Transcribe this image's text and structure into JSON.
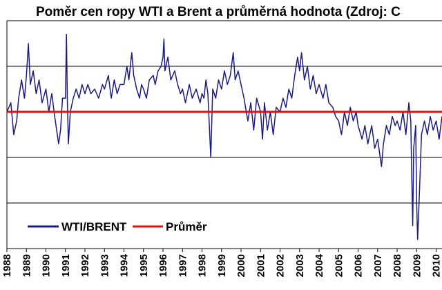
{
  "chart_data": {
    "type": "line",
    "title": "Poměr cen ropy WTI a Brent a průměrná hodnota (Zdroj: C",
    "xlabel": "",
    "ylabel": "",
    "x_ticks": [
      "1988",
      "1989",
      "1990",
      "1991",
      "1992",
      "1993",
      "1994",
      "1995",
      "1996",
      "1997",
      "1998",
      "1999",
      "2000",
      "2001",
      "2002",
      "2003",
      "2004",
      "2005",
      "2006",
      "2007",
      "2008",
      "2009",
      "2010"
    ],
    "xlim": [
      1988.0,
      2010.3
    ],
    "ylim": [
      0.7,
      1.2
    ],
    "y_gridlines": [
      0.8,
      0.9,
      1.0,
      1.1,
      1.2
    ],
    "grid": "horizontal",
    "legend_position": "bottom-left",
    "series": [
      {
        "name": "WTI/BRENT",
        "color": "#1a1a80",
        "points": [
          [
            1988.0,
            1.0
          ],
          [
            1988.2,
            1.02
          ],
          [
            1988.35,
            0.95
          ],
          [
            1988.5,
            0.98
          ],
          [
            1988.6,
            1.03
          ],
          [
            1988.75,
            1.07
          ],
          [
            1988.9,
            1.03
          ],
          [
            1989.0,
            1.08
          ],
          [
            1989.1,
            1.15
          ],
          [
            1989.2,
            1.06
          ],
          [
            1989.35,
            1.09
          ],
          [
            1989.5,
            1.04
          ],
          [
            1989.65,
            1.07
          ],
          [
            1989.8,
            1.02
          ],
          [
            1990.0,
            1.05
          ],
          [
            1990.15,
            1.0
          ],
          [
            1990.3,
            1.04
          ],
          [
            1990.45,
            0.99
          ],
          [
            1990.55,
            0.96
          ],
          [
            1990.65,
            0.93
          ],
          [
            1990.75,
            0.96
          ],
          [
            1990.85,
            1.03
          ],
          [
            1991.0,
            1.03
          ],
          [
            1991.05,
            1.17
          ],
          [
            1991.1,
            1.02
          ],
          [
            1991.15,
            0.93
          ],
          [
            1991.25,
            1.0
          ],
          [
            1991.4,
            1.03
          ],
          [
            1991.55,
            1.05
          ],
          [
            1991.7,
            1.03
          ],
          [
            1991.85,
            1.06
          ],
          [
            1992.0,
            1.04
          ],
          [
            1992.15,
            1.06
          ],
          [
            1992.3,
            1.04
          ],
          [
            1992.5,
            1.05
          ],
          [
            1992.7,
            1.03
          ],
          [
            1992.9,
            1.06
          ],
          [
            1993.0,
            1.05
          ],
          [
            1993.2,
            1.08
          ],
          [
            1993.35,
            1.03
          ],
          [
            1993.5,
            1.07
          ],
          [
            1993.65,
            1.04
          ],
          [
            1993.8,
            1.06
          ],
          [
            1994.0,
            1.06
          ],
          [
            1994.15,
            1.1
          ],
          [
            1994.25,
            1.07
          ],
          [
            1994.4,
            1.13
          ],
          [
            1994.5,
            1.08
          ],
          [
            1994.65,
            1.05
          ],
          [
            1994.8,
            1.03
          ],
          [
            1994.9,
            1.06
          ],
          [
            1995.0,
            1.05
          ],
          [
            1995.15,
            1.03
          ],
          [
            1995.3,
            1.07
          ],
          [
            1995.5,
            1.08
          ],
          [
            1995.6,
            1.06
          ],
          [
            1995.75,
            1.09
          ],
          [
            1995.9,
            1.1
          ],
          [
            1996.0,
            1.12
          ],
          [
            1996.05,
            1.16
          ],
          [
            1996.1,
            1.09
          ],
          [
            1996.25,
            1.12
          ],
          [
            1996.4,
            1.07
          ],
          [
            1996.6,
            1.09
          ],
          [
            1996.75,
            1.06
          ],
          [
            1996.9,
            1.04
          ],
          [
            1997.0,
            1.05
          ],
          [
            1997.15,
            1.02
          ],
          [
            1997.35,
            1.06
          ],
          [
            1997.5,
            1.03
          ],
          [
            1997.7,
            1.05
          ],
          [
            1997.9,
            1.02
          ],
          [
            1998.0,
            1.04
          ],
          [
            1998.1,
            1.03
          ],
          [
            1998.2,
            1.07
          ],
          [
            1998.3,
            1.04
          ],
          [
            1998.45,
            0.9
          ],
          [
            1998.55,
            1.05
          ],
          [
            1998.7,
            1.03
          ],
          [
            1998.85,
            1.07
          ],
          [
            1999.0,
            1.05
          ],
          [
            1999.15,
            1.09
          ],
          [
            1999.3,
            1.06
          ],
          [
            1999.45,
            1.08
          ],
          [
            1999.6,
            1.13
          ],
          [
            1999.7,
            1.07
          ],
          [
            1999.85,
            1.09
          ],
          [
            2000.0,
            1.06
          ],
          [
            2000.15,
            1.03
          ],
          [
            2000.35,
            0.98
          ],
          [
            2000.5,
            1.02
          ],
          [
            2000.65,
            0.96
          ],
          [
            2000.8,
            1.03
          ],
          [
            2001.0,
            1.0
          ],
          [
            2001.1,
            0.94
          ],
          [
            2001.2,
            1.02
          ],
          [
            2001.35,
            0.96
          ],
          [
            2001.5,
            1.0
          ],
          [
            2001.65,
            0.95
          ],
          [
            2001.8,
            1.01
          ],
          [
            2002.0,
            1.0
          ],
          [
            2002.15,
            1.03
          ],
          [
            2002.3,
            1.01
          ],
          [
            2002.45,
            1.05
          ],
          [
            2002.6,
            1.03
          ],
          [
            2002.75,
            1.08
          ],
          [
            2002.9,
            1.12
          ],
          [
            2003.0,
            1.09
          ],
          [
            2003.1,
            1.13
          ],
          [
            2003.25,
            1.07
          ],
          [
            2003.4,
            1.1
          ],
          [
            2003.55,
            1.05
          ],
          [
            2003.7,
            1.08
          ],
          [
            2003.85,
            1.04
          ],
          [
            2004.0,
            1.06
          ],
          [
            2004.2,
            1.03
          ],
          [
            2004.35,
            1.06
          ],
          [
            2004.5,
            1.02
          ],
          [
            2004.7,
            1.01
          ],
          [
            2004.85,
            0.99
          ],
          [
            2005.0,
            0.98
          ],
          [
            2005.15,
            0.95
          ],
          [
            2005.3,
            1.0
          ],
          [
            2005.45,
            0.97
          ],
          [
            2005.6,
            1.01
          ],
          [
            2005.75,
            0.98
          ],
          [
            2005.9,
            1.0
          ],
          [
            2006.0,
            0.97
          ],
          [
            2006.2,
            0.94
          ],
          [
            2006.35,
            0.97
          ],
          [
            2006.5,
            0.93
          ],
          [
            2006.7,
            0.97
          ],
          [
            2006.85,
            0.92
          ],
          [
            2007.0,
            0.94
          ],
          [
            2007.1,
            0.91
          ],
          [
            2007.2,
            0.88
          ],
          [
            2007.3,
            0.93
          ],
          [
            2007.45,
            0.97
          ],
          [
            2007.6,
            0.95
          ],
          [
            2007.75,
            0.99
          ],
          [
            2007.9,
            0.97
          ],
          [
            2008.0,
            0.98
          ],
          [
            2008.15,
            0.96
          ],
          [
            2008.3,
            1.0
          ],
          [
            2008.45,
            0.95
          ],
          [
            2008.6,
            1.02
          ],
          [
            2008.7,
            0.98
          ],
          [
            2008.75,
            0.86
          ],
          [
            2008.8,
            0.75
          ],
          [
            2008.85,
            0.92
          ],
          [
            2008.95,
            0.97
          ],
          [
            2009.0,
            0.8
          ],
          [
            2009.05,
            0.72
          ],
          [
            2009.15,
            0.83
          ],
          [
            2009.25,
            0.95
          ],
          [
            2009.4,
            0.98
          ],
          [
            2009.55,
            0.95
          ],
          [
            2009.7,
            0.99
          ],
          [
            2009.85,
            0.96
          ],
          [
            2010.0,
            0.98
          ],
          [
            2010.15,
            0.94
          ],
          [
            2010.3,
            0.99
          ]
        ]
      },
      {
        "name": "Průměr",
        "color": "#e01010",
        "points": [
          [
            1988.0,
            1.0
          ],
          [
            2010.3,
            1.0
          ]
        ]
      }
    ]
  }
}
